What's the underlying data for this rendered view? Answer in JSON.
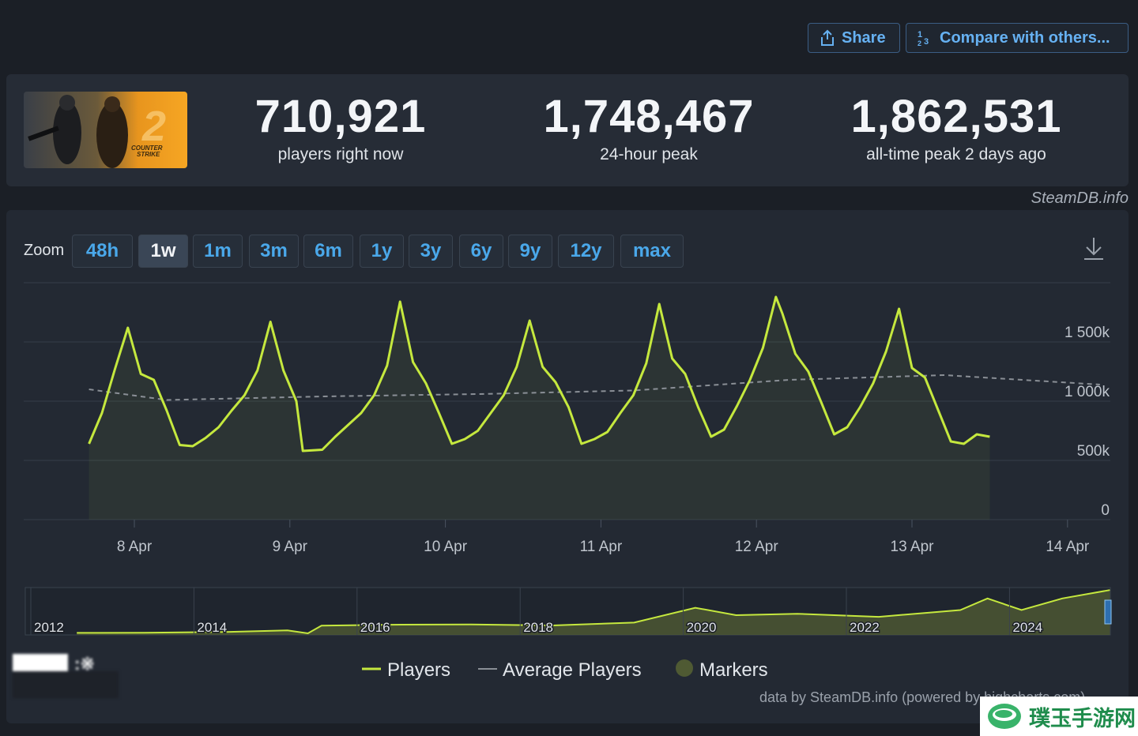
{
  "header": {
    "title": "",
    "share_label": "Share",
    "compare_label": "Compare with others..."
  },
  "stats": [
    {
      "value": "710,921",
      "label": "players right now"
    },
    {
      "value": "1,748,467",
      "label": "24-hour peak"
    },
    {
      "value": "1,862,531",
      "label": "all-time peak 2 days ago"
    }
  ],
  "logo_text": "COUNTER STRIKE 2",
  "credit_top": "SteamDB.info",
  "zoom": {
    "label": "Zoom",
    "options": [
      "48h",
      "1w",
      "1m",
      "3m",
      "6m",
      "1y",
      "3y",
      "6y",
      "9y",
      "12y",
      "max"
    ],
    "selected": "1w"
  },
  "legend": {
    "players": "Players",
    "average": "Average Players",
    "markers": "Markers"
  },
  "credit_bottom": "data by SteamDB.info (powered by highcharts.com)",
  "watermark_badge": "璞玉手游网",
  "colors": {
    "players_line": "#c5e83e",
    "average_line": "#8a8f96",
    "markers": "#4f5a33",
    "accent_blue": "#4aa8ea"
  },
  "chart_data": {
    "type": "line",
    "x_axis": {
      "ticks": [
        "8 Apr",
        "9 Apr",
        "10 Apr",
        "11 Apr",
        "12 Apr",
        "13 Apr",
        "14 Apr"
      ],
      "range": [
        "7 Apr 17:00",
        "14 Apr 05:00"
      ]
    },
    "y_axis": {
      "ticks": [
        "0",
        "500k",
        "1 000k",
        "1 500k"
      ],
      "range": [
        0,
        1900000
      ]
    },
    "grid": true,
    "legend_position": "bottom-center",
    "series": [
      {
        "name": "Players",
        "unit": "players",
        "points": [
          [
            "7 Apr 17:00",
            640000
          ],
          [
            "7 Apr 19:00",
            900000
          ],
          [
            "7 Apr 21:00",
            1270000
          ],
          [
            "7 Apr 23:00",
            1620000
          ],
          [
            "8 Apr 01:00",
            1230000
          ],
          [
            "8 Apr 03:00",
            1180000
          ],
          [
            "8 Apr 05:00",
            920000
          ],
          [
            "8 Apr 07:00",
            630000
          ],
          [
            "8 Apr 09:00",
            620000
          ],
          [
            "8 Apr 11:00",
            690000
          ],
          [
            "8 Apr 13:00",
            780000
          ],
          [
            "8 Apr 15:00",
            920000
          ],
          [
            "8 Apr 17:00",
            1050000
          ],
          [
            "8 Apr 19:00",
            1260000
          ],
          [
            "8 Apr 21:00",
            1670000
          ],
          [
            "8 Apr 23:00",
            1260000
          ],
          [
            "9 Apr 01:00",
            1000000
          ],
          [
            "9 Apr 02:00",
            580000
          ],
          [
            "9 Apr 05:00",
            590000
          ],
          [
            "9 Apr 07:00",
            700000
          ],
          [
            "9 Apr 09:00",
            800000
          ],
          [
            "9 Apr 11:00",
            900000
          ],
          [
            "9 Apr 13:00",
            1050000
          ],
          [
            "9 Apr 15:00",
            1300000
          ],
          [
            "9 Apr 17:00",
            1840000
          ],
          [
            "9 Apr 19:00",
            1330000
          ],
          [
            "9 Apr 21:00",
            1150000
          ],
          [
            "9 Apr 23:00",
            900000
          ],
          [
            "10 Apr 01:00",
            640000
          ],
          [
            "10 Apr 03:00",
            680000
          ],
          [
            "10 Apr 05:00",
            750000
          ],
          [
            "10 Apr 07:00",
            900000
          ],
          [
            "10 Apr 09:00",
            1050000
          ],
          [
            "10 Apr 11:00",
            1290000
          ],
          [
            "10 Apr 13:00",
            1680000
          ],
          [
            "10 Apr 15:00",
            1290000
          ],
          [
            "10 Apr 17:00",
            1160000
          ],
          [
            "10 Apr 19:00",
            950000
          ],
          [
            "10 Apr 21:00",
            640000
          ],
          [
            "10 Apr 23:00",
            680000
          ],
          [
            "11 Apr 01:00",
            740000
          ],
          [
            "11 Apr 03:00",
            900000
          ],
          [
            "11 Apr 05:00",
            1050000
          ],
          [
            "11 Apr 07:00",
            1320000
          ],
          [
            "11 Apr 09:00",
            1820000
          ],
          [
            "11 Apr 11:00",
            1360000
          ],
          [
            "11 Apr 13:00",
            1230000
          ],
          [
            "11 Apr 15:00",
            950000
          ],
          [
            "11 Apr 17:00",
            700000
          ],
          [
            "11 Apr 19:00",
            760000
          ],
          [
            "11 Apr 21:00",
            960000
          ],
          [
            "11 Apr 23:00",
            1180000
          ],
          [
            "12 Apr 01:00",
            1450000
          ],
          [
            "12 Apr 03:00",
            1880000
          ],
          [
            "12 Apr 04:00",
            1740000
          ],
          [
            "12 Apr 06:00",
            1400000
          ],
          [
            "12 Apr 08:00",
            1250000
          ],
          [
            "12 Apr 10:00",
            990000
          ],
          [
            "12 Apr 12:00",
            720000
          ],
          [
            "12 Apr 14:00",
            780000
          ],
          [
            "12 Apr 16:00",
            950000
          ],
          [
            "12 Apr 18:00",
            1150000
          ],
          [
            "12 Apr 20:00",
            1420000
          ],
          [
            "12 Apr 22:00",
            1780000
          ],
          [
            "13 Apr 00:00",
            1280000
          ],
          [
            "13 Apr 02:00",
            1200000
          ],
          [
            "13 Apr 04:00",
            930000
          ],
          [
            "13 Apr 06:00",
            660000
          ],
          [
            "13 Apr 08:00",
            640000
          ],
          [
            "13 Apr 10:00",
            720000
          ],
          [
            "13 Apr 12:00",
            700000
          ]
        ]
      },
      {
        "name": "Average Players",
        "unit": "players",
        "points": [
          [
            "7 Apr 17:00",
            1100000
          ],
          [
            "8 Apr 05:00",
            1010000
          ],
          [
            "9 Apr 05:00",
            1040000
          ],
          [
            "10 Apr 05:00",
            1060000
          ],
          [
            "11 Apr 05:00",
            1090000
          ],
          [
            "12 Apr 05:00",
            1180000
          ],
          [
            "13 Apr 05:00",
            1220000
          ],
          [
            "14 Apr 05:00",
            1140000
          ]
        ]
      }
    ],
    "navigator": {
      "type": "area",
      "x_ticks": [
        "2012",
        "2014",
        "2016",
        "2018",
        "2020",
        "2022",
        "2024"
      ],
      "series_name": "Players",
      "points": [
        [
          "2012-08",
          20000
        ],
        [
          "2013-06",
          25000
        ],
        [
          "2014-06",
          60000
        ],
        [
          "2015-03",
          130000
        ],
        [
          "2015-06",
          0
        ],
        [
          "2015-08",
          330000
        ],
        [
          "2016-06",
          370000
        ],
        [
          "2017-06",
          380000
        ],
        [
          "2018-06",
          340000
        ],
        [
          "2019-06",
          460000
        ],
        [
          "2020-03",
          1100000
        ],
        [
          "2020-09",
          780000
        ],
        [
          "2021-06",
          840000
        ],
        [
          "2022-06",
          710000
        ],
        [
          "2023-06",
          1000000
        ],
        [
          "2023-10",
          1500000
        ],
        [
          "2024-03",
          1000000
        ],
        [
          "2024-09",
          1500000
        ],
        [
          "2025-04",
          1860000
        ]
      ]
    }
  }
}
